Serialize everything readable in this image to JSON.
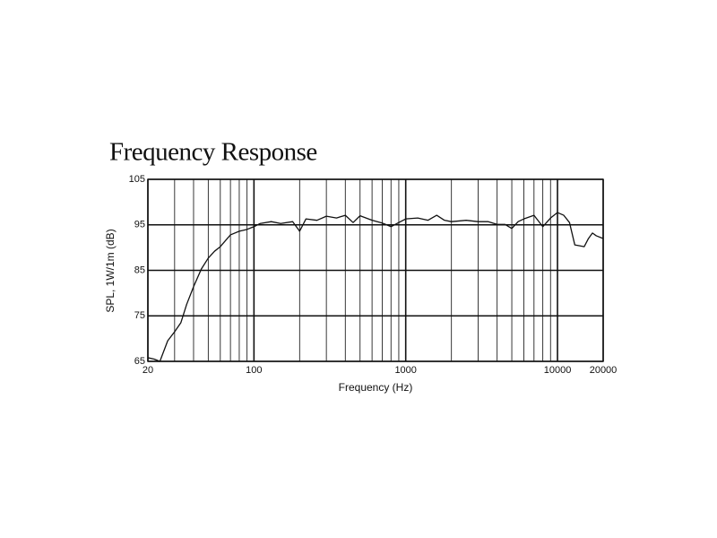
{
  "chart_data": {
    "type": "line",
    "title": "Frequency Response",
    "xlabel": "Frequency (Hz)",
    "ylabel": "SPL, 1W/1m (dB)",
    "x": [
      20,
      22,
      24,
      27,
      30,
      33,
      36,
      40,
      45,
      50,
      55,
      60,
      70,
      80,
      90,
      100,
      110,
      130,
      150,
      180,
      200,
      220,
      260,
      300,
      350,
      400,
      450,
      500,
      600,
      700,
      800,
      900,
      1000,
      1200,
      1400,
      1600,
      1800,
      2000,
      2500,
      3000,
      3500,
      4000,
      4500,
      5000,
      5500,
      6000,
      7000,
      8000,
      9000,
      10000,
      11000,
      12000,
      13000,
      14000,
      15000,
      16000,
      17000,
      18000,
      20000
    ],
    "series": [
      {
        "name": "SPL",
        "color": "#111111",
        "values": [
          65.8,
          65.5,
          65,
          69.5,
          71.5,
          73.5,
          77.5,
          81.4,
          85.3,
          87.7,
          89.2,
          90.2,
          92.8,
          93.6,
          94,
          94.6,
          95.3,
          95.7,
          95.3,
          95.7,
          93.6,
          96.3,
          96,
          96.9,
          96.5,
          97.1,
          95.5,
          97,
          96,
          95.4,
          94.6,
          95.5,
          96.3,
          96.5,
          96,
          97.1,
          96,
          95.7,
          96,
          95.7,
          95.7,
          95.1,
          95.1,
          94.2,
          95.7,
          96.3,
          97.1,
          94.6,
          96.5,
          97.7,
          97.1,
          95.5,
          90.6,
          90.4,
          90.2,
          92,
          93.2,
          92.6,
          92
        ]
      }
    ],
    "xlim": [
      20,
      20000
    ],
    "ylim": [
      65,
      105
    ],
    "xticks": [
      20,
      100,
      1000,
      10000,
      20000
    ],
    "yticks": [
      65,
      75,
      85,
      95,
      105
    ],
    "log_x": true,
    "grid": true
  }
}
